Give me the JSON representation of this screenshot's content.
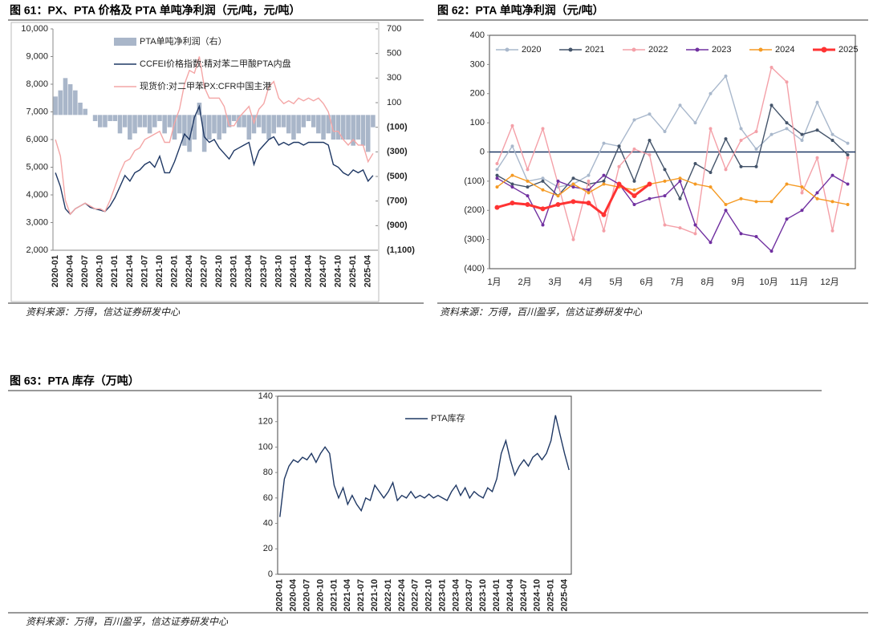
{
  "chart_data": [
    {
      "type": "combo",
      "title": "图 61：PX、PTA 价格及 PTA 单吨净利润（元/吨，元/吨）",
      "source": "资料来源：万得，信达证券研发中心",
      "categories": [
        "2020-01",
        null,
        null,
        "2020-04",
        null,
        null,
        "2020-07",
        null,
        null,
        "2020-10",
        null,
        null,
        "2021-01",
        null,
        null,
        "2021-04",
        null,
        null,
        "2021-07",
        null,
        null,
        "2021-10",
        null,
        null,
        "2022-01",
        null,
        null,
        "2022-04",
        null,
        null,
        "2022-07",
        null,
        null,
        "2022-10",
        null,
        null,
        "2023-01",
        null,
        null,
        "2023-04",
        null,
        null,
        "2023-07",
        null,
        null,
        "2023-10",
        null,
        null,
        "2024-01",
        null,
        null,
        "2024-04",
        null,
        null,
        "2024-07",
        null,
        null,
        "2024-10",
        null,
        null,
        "2025-01",
        null,
        null,
        "2025-04",
        null
      ],
      "ylim": [
        2000,
        10000
      ],
      "yticks": [
        {
          "value": 2000,
          "label": "2,000"
        },
        {
          "value": 3000,
          "label": "3,000"
        },
        {
          "value": 4000,
          "label": "4,000"
        },
        {
          "value": 5000,
          "label": "5,000"
        },
        {
          "value": 6000,
          "label": "6,000"
        },
        {
          "value": 7000,
          "label": "7,000"
        },
        {
          "value": 8000,
          "label": "8,000"
        },
        {
          "value": 9000,
          "label": "9,000"
        },
        {
          "value": 10000,
          "label": "10,000"
        }
      ],
      "y2lim": [
        -1100,
        700
      ],
      "y2ticks": [
        700,
        500,
        300,
        100,
        {
          "value": -100,
          "label": "(100)"
        },
        {
          "value": -300,
          "label": "(300)"
        },
        {
          "value": -500,
          "label": "(500)"
        },
        {
          "value": -700,
          "label": "(700)"
        },
        {
          "value": -900,
          "label": "(900)"
        },
        {
          "value": -1100,
          "label": "(1,100)"
        }
      ],
      "series": [
        {
          "name": "PTA单吨净利润（右）",
          "type": "bar",
          "axis": "y2",
          "color": "#a9b6c9",
          "values": [
            150,
            200,
            300,
            250,
            200,
            100,
            50,
            0,
            -50,
            -100,
            -100,
            -50,
            -50,
            -150,
            -100,
            -200,
            -150,
            -100,
            -100,
            -150,
            -100,
            -50,
            -150,
            -100,
            -200,
            -150,
            -250,
            -300,
            -200,
            100,
            -300,
            -200,
            -150,
            -200,
            -150,
            -100,
            -50,
            -100,
            -100,
            -200,
            -150,
            -100,
            -150,
            -200,
            -150,
            -100,
            -100,
            -150,
            -200,
            -150,
            -100,
            -50,
            -100,
            -150,
            -200,
            -150,
            -200,
            -200,
            -200,
            -200,
            -250,
            -200,
            -250,
            -300,
            -100
          ]
        },
        {
          "name": "CCFEI价格指数:精对苯二甲酸PTA内盘",
          "type": "line",
          "color": "#1f3864",
          "values": [
            4800,
            4300,
            3500,
            3300,
            3500,
            3600,
            3700,
            3550,
            3500,
            3450,
            3400,
            3600,
            3900,
            4300,
            4700,
            4500,
            4800,
            4900,
            5100,
            5200,
            5000,
            5400,
            4800,
            4800,
            5200,
            5700,
            6200,
            6000,
            6800,
            7200,
            6100,
            5900,
            6000,
            5700,
            5500,
            5300,
            5600,
            5700,
            5800,
            5900,
            5100,
            5600,
            5800,
            6000,
            6100,
            5800,
            5900,
            5800,
            5900,
            5900,
            5800,
            5900,
            5900,
            5900,
            5900,
            5800,
            5100,
            5000,
            4800,
            4700,
            4900,
            4800,
            4900,
            4500,
            4700
          ]
        },
        {
          "name": "现货价:对二甲苯PX:CFR中国主港",
          "type": "line",
          "color": "#f4a6a6",
          "values": [
            6000,
            5400,
            3800,
            3300,
            3500,
            3600,
            3700,
            3600,
            3500,
            3500,
            3400,
            3800,
            4300,
            4800,
            5200,
            5300,
            5600,
            5700,
            6000,
            6100,
            6200,
            6300,
            5900,
            5900,
            6600,
            7100,
            8000,
            8500,
            8400,
            9000,
            7900,
            7500,
            7500,
            7500,
            7200,
            6500,
            6500,
            6800,
            7000,
            7200,
            6600,
            7100,
            7300,
            7900,
            8100,
            7500,
            7300,
            7400,
            7300,
            7500,
            7400,
            7500,
            7400,
            7500,
            7300,
            7000,
            6300,
            6300,
            6000,
            5800,
            6000,
            5800,
            5800,
            5200,
            5500
          ]
        }
      ]
    },
    {
      "type": "line",
      "title": "图 62：PTA 单吨净利润（元/吨）",
      "source": "资料来源：万得，百川盈孚，信达证券研发中心",
      "categories": [
        "1月",
        null,
        "2月",
        null,
        "3月",
        null,
        "4月",
        null,
        "5月",
        null,
        "6月",
        null,
        "7月",
        null,
        "8月",
        null,
        "9月",
        null,
        "10月",
        null,
        "11月",
        null,
        "12月",
        null
      ],
      "ylim": [
        -400,
        400
      ],
      "yticks": [
        {
          "value": -400,
          "label": "(400)"
        },
        {
          "value": -300,
          "label": "(300)"
        },
        {
          "value": -200,
          "label": "(200)"
        },
        {
          "value": -100,
          "label": "(100)"
        },
        0,
        100,
        200,
        300,
        400
      ],
      "series": [
        {
          "name": "2020",
          "color": "#a9b8cc",
          "values": [
            -60,
            20,
            -100,
            -90,
            -120,
            -110,
            -80,
            30,
            20,
            110,
            130,
            70,
            160,
            100,
            200,
            260,
            80,
            10,
            60,
            80,
            40,
            170,
            60,
            30
          ]
        },
        {
          "name": "2021",
          "color": "#44546a",
          "values": [
            -80,
            -110,
            -120,
            -100,
            -150,
            -90,
            -110,
            -100,
            20,
            -100,
            40,
            -60,
            -160,
            -40,
            -70,
            45,
            -50,
            -50,
            160,
            100,
            60,
            75,
            40,
            -10
          ]
        },
        {
          "name": "2022",
          "color": "#f4a0a8",
          "values": [
            -40,
            90,
            -60,
            80,
            -110,
            -300,
            -100,
            -270,
            -50,
            10,
            -10,
            -250,
            -260,
            -280,
            80,
            -60,
            40,
            70,
            290,
            240,
            -140,
            -20,
            -270,
            -20
          ]
        },
        {
          "name": "2023",
          "color": "#7030a0",
          "values": [
            -90,
            -120,
            -150,
            -250,
            -100,
            -120,
            -130,
            -80,
            -110,
            -180,
            -160,
            -150,
            -100,
            -250,
            -310,
            -200,
            -280,
            -290,
            -340,
            -230,
            -200,
            -140,
            -80,
            -110
          ]
        },
        {
          "name": "2024",
          "color": "#f59a23",
          "values": [
            -120,
            -80,
            -100,
            -130,
            -150,
            -110,
            -140,
            -110,
            -120,
            -130,
            -110,
            -100,
            -90,
            -110,
            -120,
            -180,
            -160,
            -170,
            -170,
            -110,
            -120,
            -160,
            -170,
            -180
          ]
        },
        {
          "name": "2025",
          "color": "#ff3333",
          "linewidth": 3,
          "values": [
            -190,
            -175,
            -180,
            -195,
            -180,
            -170,
            -175,
            -215,
            -110,
            -150,
            -110,
            null,
            null,
            null,
            null,
            null,
            null,
            null,
            null,
            null,
            null,
            null,
            null,
            null
          ]
        }
      ]
    },
    {
      "type": "line",
      "title": "图 63：PTA 库存（万吨）",
      "source": "资料来源：万得，百川盈孚，信达证券研发中心",
      "categories": [
        "2020-01",
        null,
        null,
        "2020-04",
        null,
        null,
        "2020-07",
        null,
        null,
        "2020-10",
        null,
        null,
        "2021-01",
        null,
        null,
        "2021-04",
        null,
        null,
        "2021-07",
        null,
        null,
        "2021-10",
        null,
        null,
        "2022-01",
        null,
        null,
        "2022-04",
        null,
        null,
        "2022-07",
        null,
        null,
        "2022-10",
        null,
        null,
        "2023-01",
        null,
        null,
        "2023-04",
        null,
        null,
        "2023-07",
        null,
        null,
        "2023-10",
        null,
        null,
        "2024-01",
        null,
        null,
        "2024-04",
        null,
        null,
        "2024-07",
        null,
        null,
        "2024-10",
        null,
        null,
        "2025-01",
        null,
        null,
        "2025-04",
        null
      ],
      "ylim": [
        0,
        140
      ],
      "yticks": [
        0,
        20,
        40,
        60,
        80,
        100,
        120,
        140
      ],
      "series": [
        {
          "name": "PTA库存",
          "color": "#1f3864",
          "values": [
            45,
            75,
            85,
            90,
            88,
            92,
            90,
            95,
            88,
            95,
            100,
            95,
            70,
            60,
            68,
            55,
            62,
            55,
            50,
            60,
            58,
            70,
            65,
            60,
            65,
            72,
            58,
            62,
            60,
            65,
            60,
            62,
            60,
            63,
            60,
            62,
            60,
            58,
            65,
            70,
            62,
            68,
            60,
            65,
            62,
            60,
            68,
            65,
            75,
            95,
            105,
            90,
            78,
            85,
            90,
            85,
            92,
            95,
            90,
            95,
            105,
            125,
            110,
            95,
            82
          ]
        }
      ]
    }
  ]
}
